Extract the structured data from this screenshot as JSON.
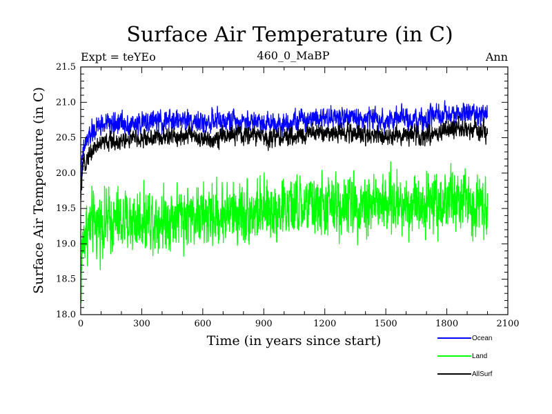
{
  "chart_data": {
    "type": "line",
    "title": "Surface Air Temperature (in C)",
    "subtitle_left": "Expt = teYEo",
    "subtitle_center": "460_0_MaBP",
    "subtitle_right": "Ann",
    "xlabel": "Time (in years since start)",
    "ylabel": "Surface Air Temperature (in C)",
    "xlim": [
      0,
      2100
    ],
    "ylim": [
      18.0,
      21.5
    ],
    "xticks": [
      "0",
      "300",
      "600",
      "900",
      "1200",
      "1500",
      "1800",
      "2100"
    ],
    "yticks": [
      "18.0",
      "18.5",
      "19.0",
      "19.5",
      "20.0",
      "20.5",
      "21.0",
      "21.5"
    ],
    "legend_position": "bottom-right outside",
    "series": [
      {
        "name": "Ocean",
        "color": "#0000ff",
        "x": [
          0,
          5,
          10,
          20,
          30,
          50,
          75,
          100,
          150,
          200,
          250,
          300,
          350,
          400,
          450,
          500,
          550,
          600,
          650,
          700,
          750,
          800,
          850,
          900,
          950,
          1000,
          1050,
          1100,
          1150,
          1200,
          1250,
          1300,
          1350,
          1400,
          1450,
          1500,
          1550,
          1600,
          1650,
          1700,
          1750,
          1800,
          1850,
          1900,
          1950,
          2000
        ],
        "values": [
          19.8,
          20.1,
          20.25,
          20.4,
          20.45,
          20.55,
          20.62,
          20.68,
          20.7,
          20.72,
          20.68,
          20.7,
          20.74,
          20.72,
          20.74,
          20.76,
          20.75,
          20.7,
          20.74,
          20.72,
          20.75,
          20.73,
          20.74,
          20.72,
          20.72,
          20.7,
          20.74,
          20.76,
          20.8,
          20.8,
          20.78,
          20.8,
          20.77,
          20.76,
          20.78,
          20.74,
          20.77,
          20.76,
          20.72,
          20.76,
          20.8,
          20.82,
          20.84,
          20.84,
          20.84,
          20.8
        ],
        "noise": 0.07
      },
      {
        "name": "Land",
        "color": "#00ff00",
        "x": [
          0,
          5,
          10,
          20,
          30,
          50,
          75,
          100,
          150,
          200,
          250,
          300,
          350,
          400,
          450,
          500,
          550,
          600,
          650,
          700,
          750,
          800,
          850,
          900,
          950,
          1000,
          1050,
          1100,
          1150,
          1200,
          1250,
          1300,
          1350,
          1400,
          1450,
          1500,
          1550,
          1600,
          1650,
          1700,
          1750,
          1800,
          1850,
          1900,
          1950,
          2000
        ],
        "values": [
          18.3,
          18.8,
          19.0,
          19.15,
          19.2,
          19.25,
          19.28,
          19.3,
          19.32,
          19.3,
          19.33,
          19.35,
          19.38,
          19.35,
          19.38,
          19.4,
          19.42,
          19.38,
          19.4,
          19.42,
          19.45,
          19.45,
          19.45,
          19.45,
          19.48,
          19.5,
          19.5,
          19.52,
          19.55,
          19.52,
          19.55,
          19.55,
          19.58,
          19.58,
          19.58,
          19.55,
          19.56,
          19.58,
          19.6,
          19.58,
          19.6,
          19.62,
          19.6,
          19.6,
          19.58,
          19.6
        ],
        "noise": 0.2
      },
      {
        "name": "AllSurf",
        "color": "#000000",
        "x": [
          0,
          5,
          10,
          20,
          30,
          50,
          75,
          100,
          150,
          200,
          250,
          300,
          350,
          400,
          450,
          500,
          550,
          600,
          650,
          700,
          750,
          800,
          850,
          900,
          950,
          1000,
          1050,
          1100,
          1150,
          1200,
          1250,
          1300,
          1350,
          1400,
          1450,
          1500,
          1550,
          1600,
          1650,
          1700,
          1750,
          1800,
          1850,
          1900,
          1950,
          2000
        ],
        "values": [
          19.6,
          19.9,
          20.05,
          20.15,
          20.2,
          20.3,
          20.38,
          20.42,
          20.45,
          20.45,
          20.48,
          20.48,
          20.5,
          20.5,
          20.52,
          20.52,
          20.55,
          20.45,
          20.5,
          20.52,
          20.55,
          20.52,
          20.55,
          20.5,
          20.52,
          20.5,
          20.52,
          20.55,
          20.58,
          20.57,
          20.56,
          20.58,
          20.55,
          20.55,
          20.56,
          20.5,
          20.53,
          20.55,
          20.52,
          20.55,
          20.58,
          20.6,
          20.62,
          20.6,
          20.6,
          20.57
        ],
        "noise": 0.06
      }
    ]
  }
}
